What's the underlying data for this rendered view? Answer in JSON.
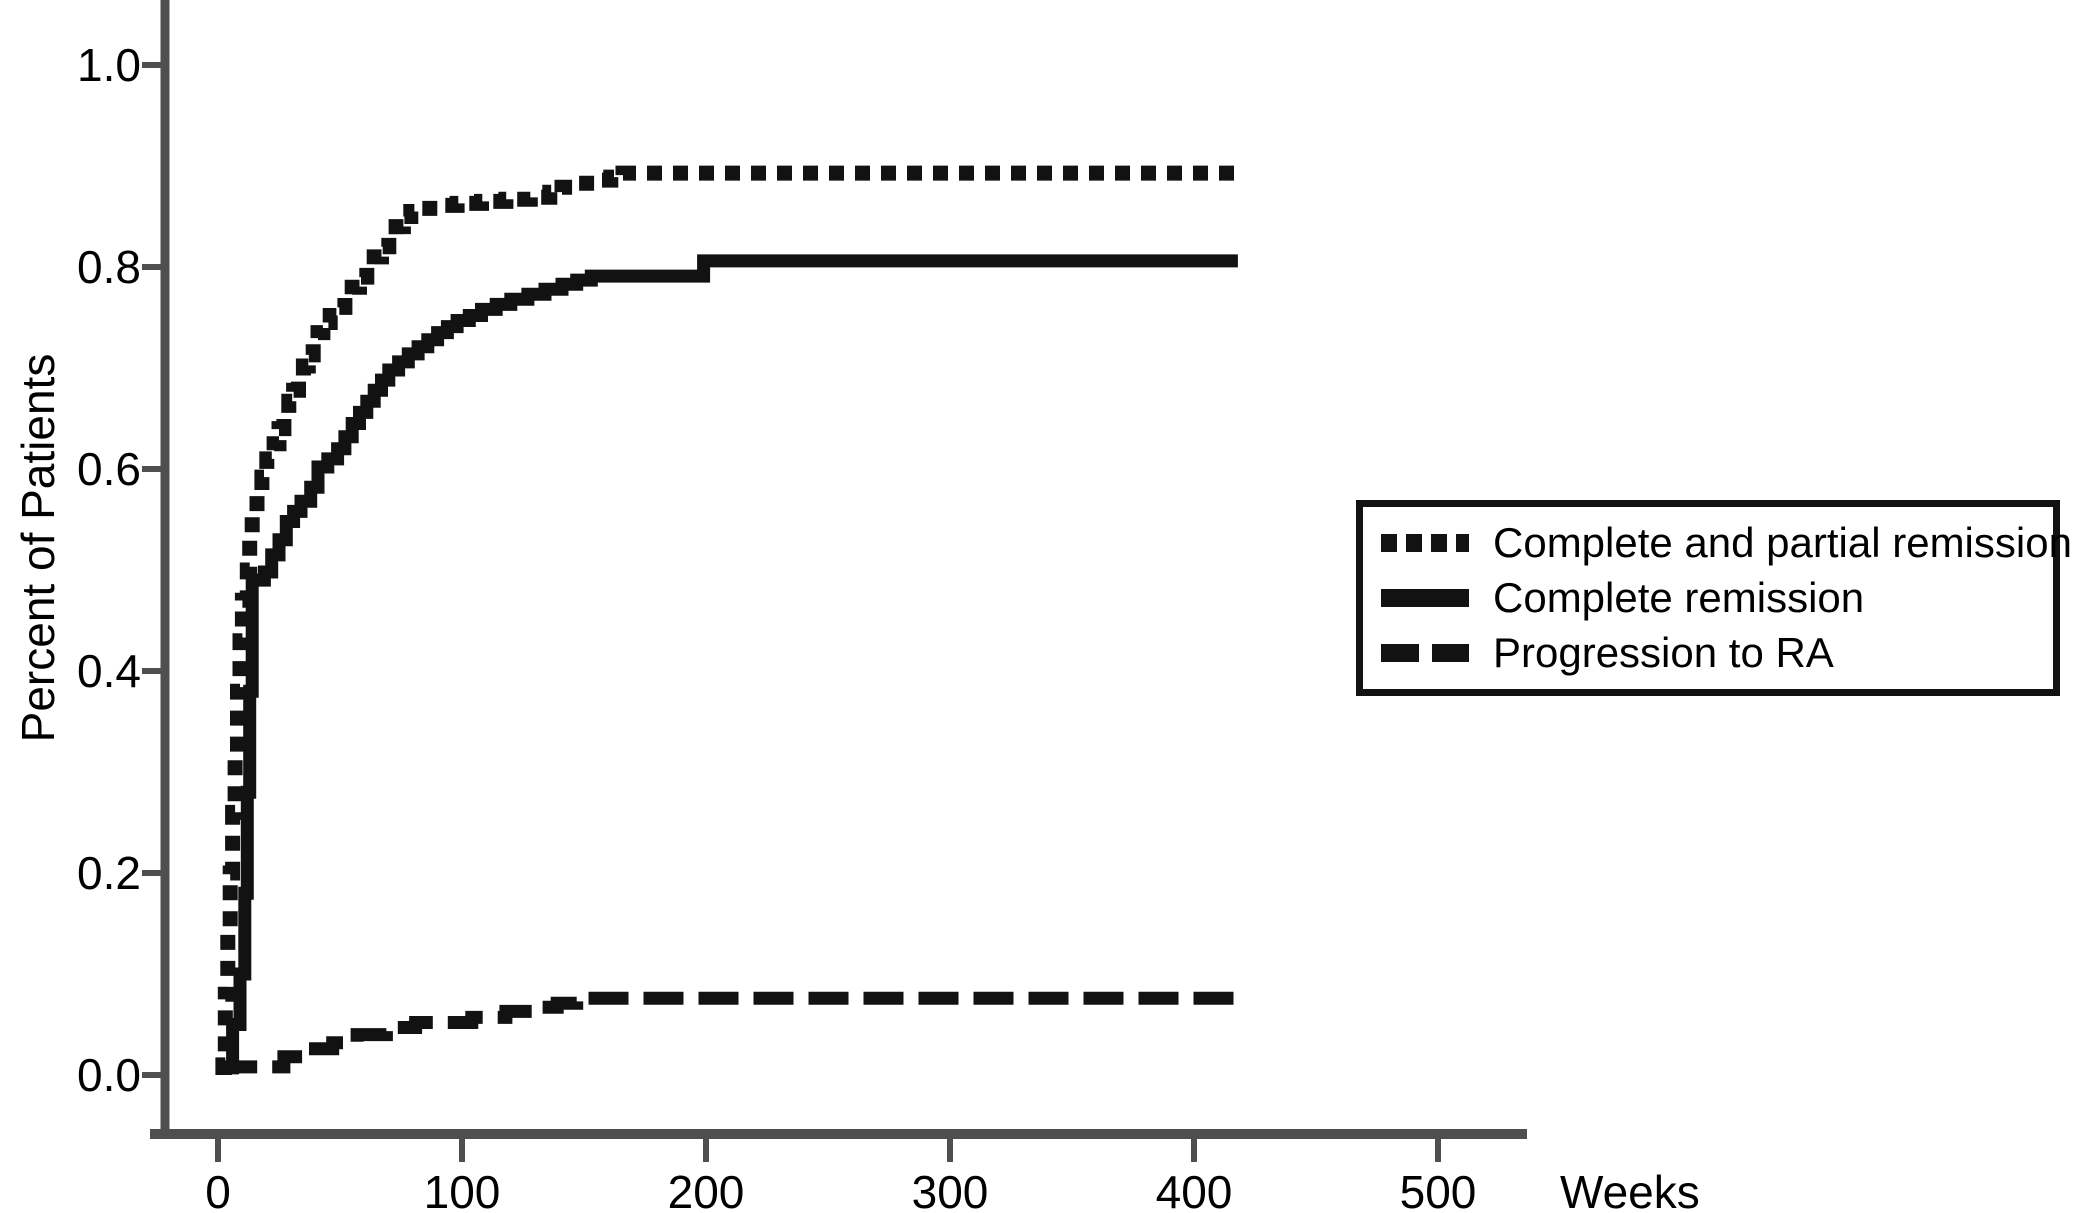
{
  "figure": {
    "background_color": "#ffffff",
    "axis_color": "#4f4f4f",
    "curve_color": "#121212",
    "text_color": "#000000"
  },
  "chart_data": {
    "type": "line",
    "subtype": "step-cumulative-incidence",
    "title": "",
    "xlabel": "Weeks",
    "ylabel": "Percent of Patients",
    "xlim": [
      0,
      560
    ],
    "ylim": [
      0,
      1.05
    ],
    "x_ticks": [
      0,
      100,
      200,
      300,
      400,
      500
    ],
    "y_tick_labels": [
      "0.0",
      "0.2",
      "0.4",
      "0.6",
      "0.8",
      "1.0"
    ],
    "grid": false,
    "legend_position": "center-right",
    "series": [
      {
        "name": "Complete and partial remission",
        "line_style": "dotted",
        "final_value": 0.893,
        "points": [
          [
            2,
            0
          ],
          [
            2,
            0.01
          ],
          [
            3,
            0.08
          ],
          [
            4,
            0.14
          ],
          [
            5,
            0.2
          ],
          [
            6,
            0.26
          ],
          [
            7,
            0.32
          ],
          [
            8,
            0.38
          ],
          [
            9,
            0.43
          ],
          [
            10,
            0.47
          ],
          [
            12,
            0.5
          ],
          [
            13,
            0.53
          ],
          [
            14,
            0.555
          ],
          [
            16,
            0.575
          ],
          [
            18,
            0.592
          ],
          [
            20,
            0.61
          ],
          [
            23,
            0.625
          ],
          [
            25,
            0.64
          ],
          [
            27,
            0.655
          ],
          [
            29,
            0.667
          ],
          [
            31,
            0.678
          ],
          [
            33,
            0.69
          ],
          [
            35,
            0.702
          ],
          [
            37,
            0.713
          ],
          [
            39,
            0.725
          ],
          [
            41,
            0.735
          ],
          [
            43,
            0.745
          ],
          [
            46,
            0.752
          ],
          [
            49,
            0.76
          ],
          [
            52,
            0.77
          ],
          [
            55,
            0.78
          ],
          [
            58,
            0.79
          ],
          [
            61,
            0.8
          ],
          [
            64,
            0.81
          ],
          [
            67,
            0.82
          ],
          [
            70,
            0.83
          ],
          [
            73,
            0.84
          ],
          [
            76,
            0.85
          ],
          [
            79,
            0.855
          ],
          [
            83,
            0.858
          ],
          [
            90,
            0.861
          ],
          [
            98,
            0.863
          ],
          [
            108,
            0.865
          ],
          [
            118,
            0.867
          ],
          [
            128,
            0.869
          ],
          [
            136,
            0.874
          ],
          [
            141,
            0.879
          ],
          [
            148,
            0.883
          ],
          [
            155,
            0.886
          ],
          [
            161,
            0.889
          ],
          [
            166,
            0.893
          ],
          [
            418,
            0.893
          ]
        ]
      },
      {
        "name": "Complete remission",
        "line_style": "solid",
        "final_value": 0.806,
        "points": [
          [
            3,
            0
          ],
          [
            3,
            0.007
          ],
          [
            6,
            0.05
          ],
          [
            9,
            0.1
          ],
          [
            11,
            0.18
          ],
          [
            12,
            0.28
          ],
          [
            13,
            0.38
          ],
          [
            14,
            0.49
          ],
          [
            19,
            0.498
          ],
          [
            22,
            0.515
          ],
          [
            25,
            0.53
          ],
          [
            28,
            0.548
          ],
          [
            31,
            0.558
          ],
          [
            34,
            0.568
          ],
          [
            38,
            0.582
          ],
          [
            41,
            0.602
          ],
          [
            45,
            0.61
          ],
          [
            49,
            0.62
          ],
          [
            52,
            0.632
          ],
          [
            55,
            0.645
          ],
          [
            58,
            0.656
          ],
          [
            61,
            0.667
          ],
          [
            64,
            0.678
          ],
          [
            67,
            0.688
          ],
          [
            70,
            0.698
          ],
          [
            74,
            0.706
          ],
          [
            78,
            0.714
          ],
          [
            82,
            0.721
          ],
          [
            86,
            0.728
          ],
          [
            90,
            0.735
          ],
          [
            94,
            0.741
          ],
          [
            98,
            0.747
          ],
          [
            103,
            0.752
          ],
          [
            108,
            0.758
          ],
          [
            114,
            0.763
          ],
          [
            120,
            0.768
          ],
          [
            127,
            0.773
          ],
          [
            134,
            0.778
          ],
          [
            141,
            0.783
          ],
          [
            147,
            0.787
          ],
          [
            153,
            0.791
          ],
          [
            199,
            0.806
          ],
          [
            418,
            0.806
          ]
        ]
      },
      {
        "name": "Progression to RA",
        "line_style": "dashed",
        "final_value": 0.076,
        "points": [
          [
            3,
            0
          ],
          [
            3,
            0.008
          ],
          [
            27,
            0.018
          ],
          [
            36,
            0.026
          ],
          [
            47,
            0.032
          ],
          [
            57,
            0.04
          ],
          [
            69,
            0.047
          ],
          [
            81,
            0.052
          ],
          [
            104,
            0.057
          ],
          [
            118,
            0.063
          ],
          [
            130,
            0.067
          ],
          [
            139,
            0.071
          ],
          [
            147,
            0.076
          ],
          [
            418,
            0.076
          ]
        ]
      }
    ]
  }
}
